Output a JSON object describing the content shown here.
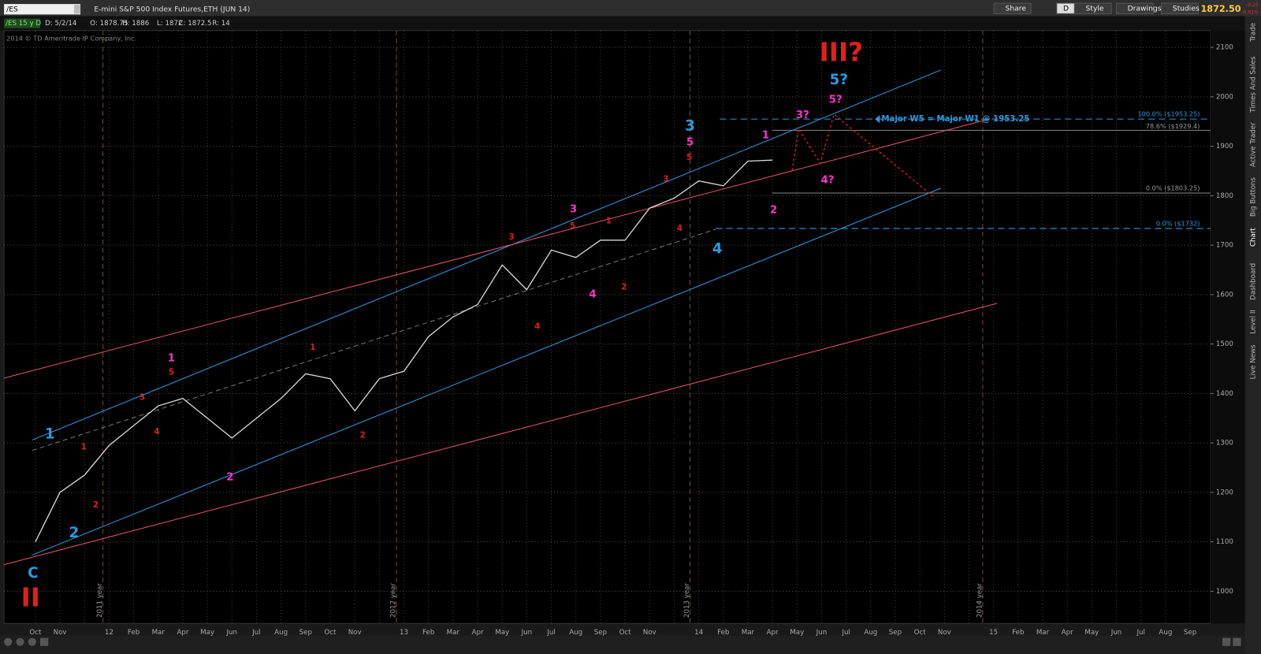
{
  "toolbar": {
    "symbol": "/ES",
    "description": "E-mini S&P 500 Index Futures,ETH (JUN 14)",
    "buttons": [
      "Share",
      "D",
      "Style",
      "Drawings",
      "Studies"
    ],
    "last": "1872.50",
    "change": "-0.25",
    "change_pct": "-0.01%"
  },
  "info": [
    "/ES 15 y D",
    "D: 5/2/14",
    "O: 1878.75",
    "H: 1886",
    "L: 1872",
    "C: 1872.5",
    "R: 14"
  ],
  "copyright": "2014 © TD Ameritrade IP Company, Inc.",
  "side_tabs": [
    "Trade",
    "Times And Sales",
    "Active Trader",
    "Big Buttons",
    "Chart",
    "Dashboard",
    "Level II",
    "Live News"
  ],
  "year_lines": [
    "2011 year",
    "2012 year",
    "2013 year",
    "2014 year"
  ],
  "note": "Major W5 = Major W1 @ 1953.25",
  "fib_levels": [
    "100.0% ($1953.25)",
    "78.6% ($1929.4)",
    "0.0% ($1803.25)",
    "0.0% ($1732)"
  ],
  "waves": [
    {
      "label": "III?",
      "color": "#e0201a"
    },
    {
      "label": "II",
      "color": "#e0201a"
    },
    {
      "label": "C",
      "color": "#2b9be0"
    },
    {
      "label": "1",
      "color": "#2b9be0"
    },
    {
      "label": "2",
      "color": "#2b9be0"
    },
    {
      "label": "3",
      "color": "#2b9be0"
    },
    {
      "label": "4",
      "color": "#2b9be0"
    },
    {
      "label": "5?",
      "color": "#2b9be0"
    },
    {
      "label": "1",
      "color": "#ff33cc"
    },
    {
      "label": "2",
      "color": "#ff33cc"
    },
    {
      "label": "3",
      "color": "#ff33cc"
    },
    {
      "label": "4",
      "color": "#ff33cc"
    },
    {
      "label": "5",
      "color": "#ff33cc"
    },
    {
      "label": "1",
      "color": "#ff33cc"
    },
    {
      "label": "2",
      "color": "#ff33cc"
    },
    {
      "label": "3?",
      "color": "#ff33cc"
    },
    {
      "label": "4?",
      "color": "#ff33cc"
    },
    {
      "label": "5?",
      "color": "#ff33cc"
    },
    {
      "label": "1",
      "color": "#e0201a"
    },
    {
      "label": "2",
      "color": "#e0201a"
    },
    {
      "label": "3",
      "color": "#e0201a"
    },
    {
      "label": "4",
      "color": "#e0201a"
    },
    {
      "label": "5",
      "color": "#e0201a"
    },
    {
      "label": "1",
      "color": "#e0201a"
    },
    {
      "label": "2",
      "color": "#e0201a"
    },
    {
      "label": "3",
      "color": "#e0201a"
    },
    {
      "label": "4",
      "color": "#e0201a"
    },
    {
      "label": "5",
      "color": "#e0201a"
    },
    {
      "label": "1",
      "color": "#e0201a"
    },
    {
      "label": "2",
      "color": "#e0201a"
    },
    {
      "label": "3",
      "color": "#e0201a"
    },
    {
      "label": "4",
      "color": "#e0201a"
    },
    {
      "label": "5",
      "color": "#e0201a"
    }
  ],
  "chart_data": {
    "type": "line",
    "x": [
      "Oct",
      "Nov",
      null,
      "12",
      "Feb",
      "Mar",
      "Apr",
      "May",
      "Jun",
      "Jul",
      "Aug",
      "Sep",
      "Oct",
      "Nov",
      null,
      "13",
      "Feb",
      "Mar",
      "Apr",
      "May",
      "Jun",
      "Jul",
      "Aug",
      "Sep",
      "Oct",
      "Nov",
      null,
      "14",
      "Feb",
      "Mar",
      "Apr",
      "May",
      "Jun",
      "Jul",
      "Aug",
      "Sep",
      "Oct",
      "Nov",
      null,
      "15",
      "Feb",
      "Mar",
      "Apr",
      "May",
      "Jun",
      "Jul",
      "Aug",
      "Sep"
    ],
    "values": [
      1100,
      1200,
      1235,
      1295,
      1335,
      1375,
      1390,
      1350,
      1310,
      1350,
      1390,
      1440,
      1430,
      1365,
      1430,
      1445,
      1515,
      1555,
      1580,
      1660,
      1610,
      1690,
      1675,
      1710,
      1710,
      1775,
      1795,
      1830,
      1820,
      1870,
      1872,
      null,
      null,
      null,
      null,
      null,
      null,
      null,
      null,
      null,
      null,
      null,
      null,
      null,
      null,
      null,
      null,
      null
    ],
    "color": "#d8d8d8",
    "ylim": [
      935,
      2134
    ],
    "yticks": [
      1000,
      1100,
      1200,
      1300,
      1400,
      1500,
      1600,
      1700,
      1800,
      1900,
      2000,
      2100
    ],
    "grid": true
  }
}
